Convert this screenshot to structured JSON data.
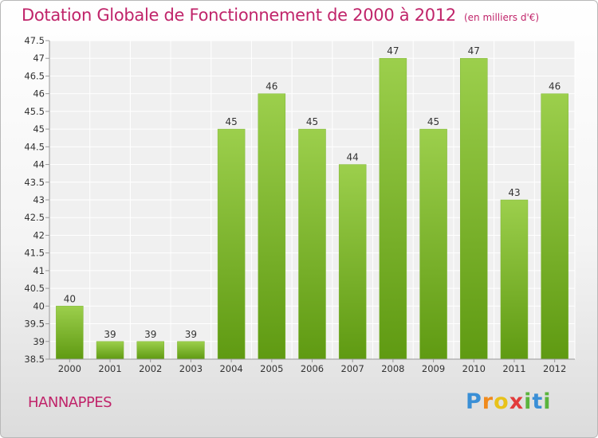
{
  "header": {
    "title": "Dotation Globale de Fonctionnement de 2000 à 2012",
    "subtitle": "(en milliers d'€)"
  },
  "footer": {
    "commune": "HANNAPPES",
    "logo_text": "Proxiti"
  },
  "colors": {
    "accent": "#c0246a",
    "bar_light": "#9ccf4c",
    "bar_dark": "#5f9a12"
  },
  "chart_data": {
    "type": "bar",
    "title": "Dotation Globale de Fonctionnement de 2000 à 2012",
    "subtitle": "(en milliers d'€)",
    "categories": [
      "2000",
      "2001",
      "2002",
      "2003",
      "2004",
      "2005",
      "2006",
      "2007",
      "2008",
      "2009",
      "2010",
      "2011",
      "2012"
    ],
    "values": [
      40,
      39,
      39,
      39,
      45,
      46,
      45,
      44,
      47,
      45,
      47,
      43,
      46
    ],
    "data_labels": [
      "40",
      "39",
      "39",
      "39",
      "45",
      "46",
      "45",
      "44",
      "47",
      "45",
      "47",
      "43",
      "46"
    ],
    "ylim": [
      38.5,
      47.5
    ],
    "yticks": [
      "38.5",
      "39",
      "39.5",
      "40",
      "40.5",
      "41",
      "41.5",
      "42",
      "42.5",
      "43",
      "43.5",
      "44",
      "44.5",
      "45",
      "45.5",
      "46",
      "46.5",
      "47",
      "47.5"
    ],
    "grid": true,
    "legend": "none",
    "xlabel": "",
    "ylabel": ""
  }
}
